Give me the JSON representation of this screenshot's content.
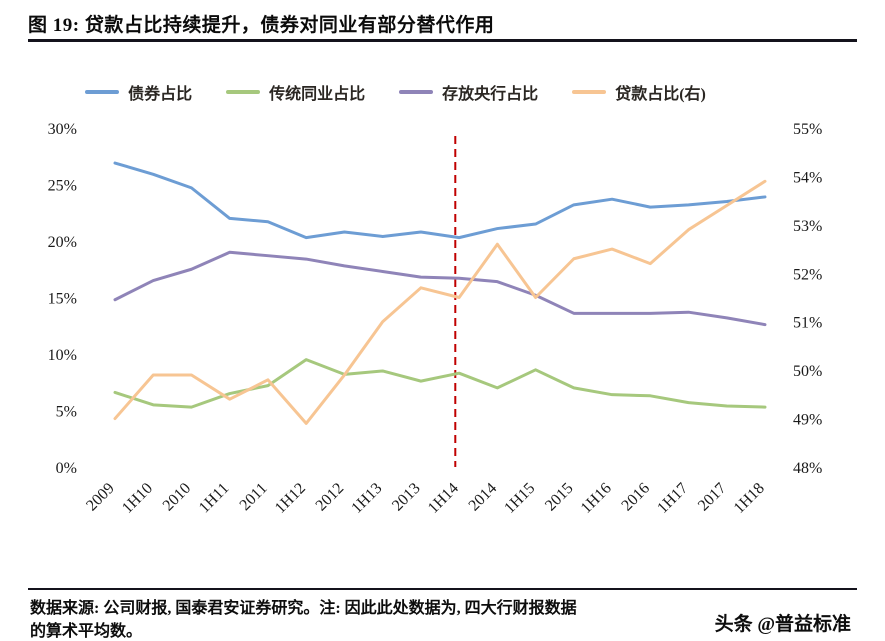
{
  "title": "图 19:  贷款占比持续提升，债券对同业有部分替代作用",
  "footer": {
    "note_line1": "数据来源: 公司财报, 国泰君安证券研究。注: 因此此处数据为, 四大行财报数据",
    "note_line2": "的算术平均数。",
    "watermark": "头条 @普益标准"
  },
  "chart_data": {
    "type": "line",
    "categories": [
      "2009",
      "1H10",
      "2010",
      "1H11",
      "2011",
      "1H12",
      "2012",
      "1H13",
      "2013",
      "1H14",
      "2014",
      "1H15",
      "2015",
      "1H16",
      "2016",
      "1H17",
      "2017",
      "1H18"
    ],
    "series": [
      {
        "name": "债券占比",
        "axis": "left",
        "color": "#6D9DD4",
        "values": [
          26.9,
          25.9,
          24.7,
          22.0,
          21.7,
          20.3,
          20.8,
          20.4,
          20.8,
          20.3,
          21.1,
          21.5,
          23.2,
          23.7,
          23.0,
          23.2,
          23.5,
          23.9
        ]
      },
      {
        "name": "传统同业占比",
        "axis": "left",
        "color": "#A6C87D",
        "values": [
          6.6,
          5.5,
          5.3,
          6.5,
          7.2,
          9.5,
          8.2,
          8.5,
          7.6,
          8.3,
          7.0,
          8.6,
          7.0,
          6.4,
          6.3,
          5.7,
          5.4,
          5.3
        ]
      },
      {
        "name": "存放央行占比",
        "axis": "left",
        "color": "#8F84B8",
        "values": [
          14.8,
          16.5,
          17.5,
          19.0,
          18.7,
          18.4,
          17.8,
          17.3,
          16.8,
          16.7,
          16.4,
          15.2,
          13.6,
          13.6,
          13.6,
          13.7,
          13.2,
          12.6
        ]
      },
      {
        "name": "贷款占比(右)",
        "axis": "right",
        "color": "#F7C593",
        "values": [
          49.0,
          49.9,
          49.9,
          49.4,
          49.8,
          48.9,
          49.9,
          51.0,
          51.7,
          51.5,
          52.6,
          51.5,
          52.3,
          52.5,
          52.2,
          52.9,
          53.4,
          53.9
        ]
      }
    ],
    "left_axis": {
      "min": 0,
      "max": 30,
      "step": 5,
      "unit": "%"
    },
    "right_axis": {
      "min": 48,
      "max": 55,
      "step": 1,
      "unit": "%"
    },
    "annotation_vline": {
      "x_index": 8.9,
      "color": "#C00000",
      "style": "dashed"
    },
    "legend_position": "top",
    "grid": false
  }
}
